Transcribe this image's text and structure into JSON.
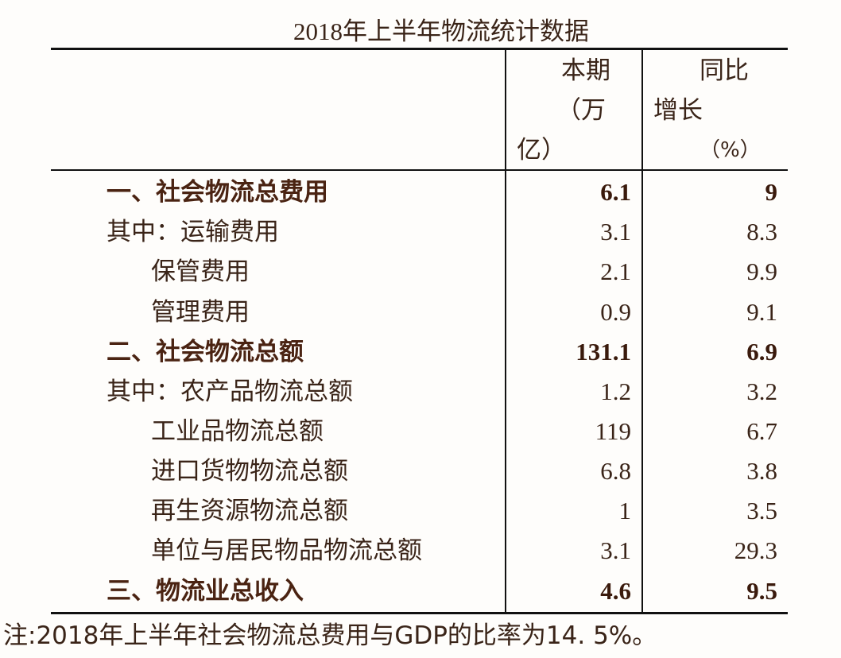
{
  "title": "2018年上半年物流统计数据",
  "header": {
    "col1_line1": "本期",
    "col1_line2": "（万",
    "col1_line3": "亿）",
    "col2_line1": "同比",
    "col2_line2": "增长",
    "col2_line3": "（%）"
  },
  "rows": [
    {
      "label": "一、社会物流总费用",
      "value": "6.1",
      "growth": "9"
    },
    {
      "label": "其中：运输费用",
      "value": "3.1",
      "growth": "8.3"
    },
    {
      "label": "保管费用",
      "value": "2.1",
      "growth": "9.9"
    },
    {
      "label": "管理费用",
      "value": "0.9",
      "growth": "9.1"
    },
    {
      "label": "二、社会物流总额",
      "value": "131.1",
      "growth": "6.9"
    },
    {
      "label": "其中：农产品物流总额",
      "value": "1.2",
      "growth": "3.2"
    },
    {
      "label": "工业品物流总额",
      "value": "119",
      "growth": "6.7"
    },
    {
      "label": "进口货物物流总额",
      "value": "6.8",
      "growth": "3.8"
    },
    {
      "label": "再生资源物流总额",
      "value": "1",
      "growth": "3.5"
    },
    {
      "label": "单位与居民物品物流总额",
      "value": "3.1",
      "growth": "29.3"
    },
    {
      "label": "三、物流业总收入",
      "value": "4.6",
      "growth": "9.5"
    }
  ],
  "note": "注:2018年上半年社会物流总费用与GDP的比率为14. 5%。"
}
